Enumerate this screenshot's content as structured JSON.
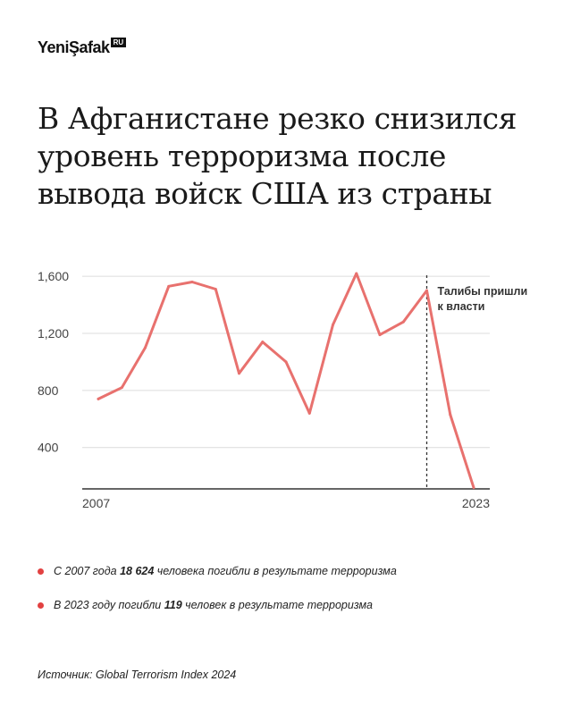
{
  "logo": {
    "text": "YeniŞafak",
    "badge": "RU"
  },
  "title": "В Афганистане резко снизился уровень терроризма после вывода войск США из страны",
  "chart_data": {
    "type": "line",
    "x": [
      2007,
      2008,
      2009,
      2010,
      2011,
      2012,
      2013,
      2014,
      2015,
      2016,
      2017,
      2018,
      2019,
      2020,
      2021,
      2022,
      2023
    ],
    "values": [
      740,
      820,
      1100,
      1530,
      1560,
      1510,
      920,
      1140,
      1000,
      640,
      1260,
      1620,
      1190,
      1280,
      1500,
      630,
      119
    ],
    "y_ticks": [
      400,
      800,
      1200,
      1600
    ],
    "y_tick_labels": [
      "400",
      "800",
      "1,200",
      "1,600"
    ],
    "x_tick_labels": [
      "2007",
      "2023"
    ],
    "ylim": [
      110,
      1720
    ],
    "grid": true,
    "annotation": {
      "x": 2021,
      "line1": "Талибы пришли",
      "line2": "к власти"
    },
    "line_color": "#e8716e",
    "annotation_color": "#333333"
  },
  "bullets": [
    {
      "pre": "С 2007 года ",
      "bold": "18 624",
      "post": " человека погибли в результате терроризма"
    },
    {
      "pre": "В 2023 году погибли ",
      "bold": "119",
      "post": " человек в результате терроризма"
    }
  ],
  "bullet_color": "#e24141",
  "source": "Источник: Global Terrorism Index 2024"
}
